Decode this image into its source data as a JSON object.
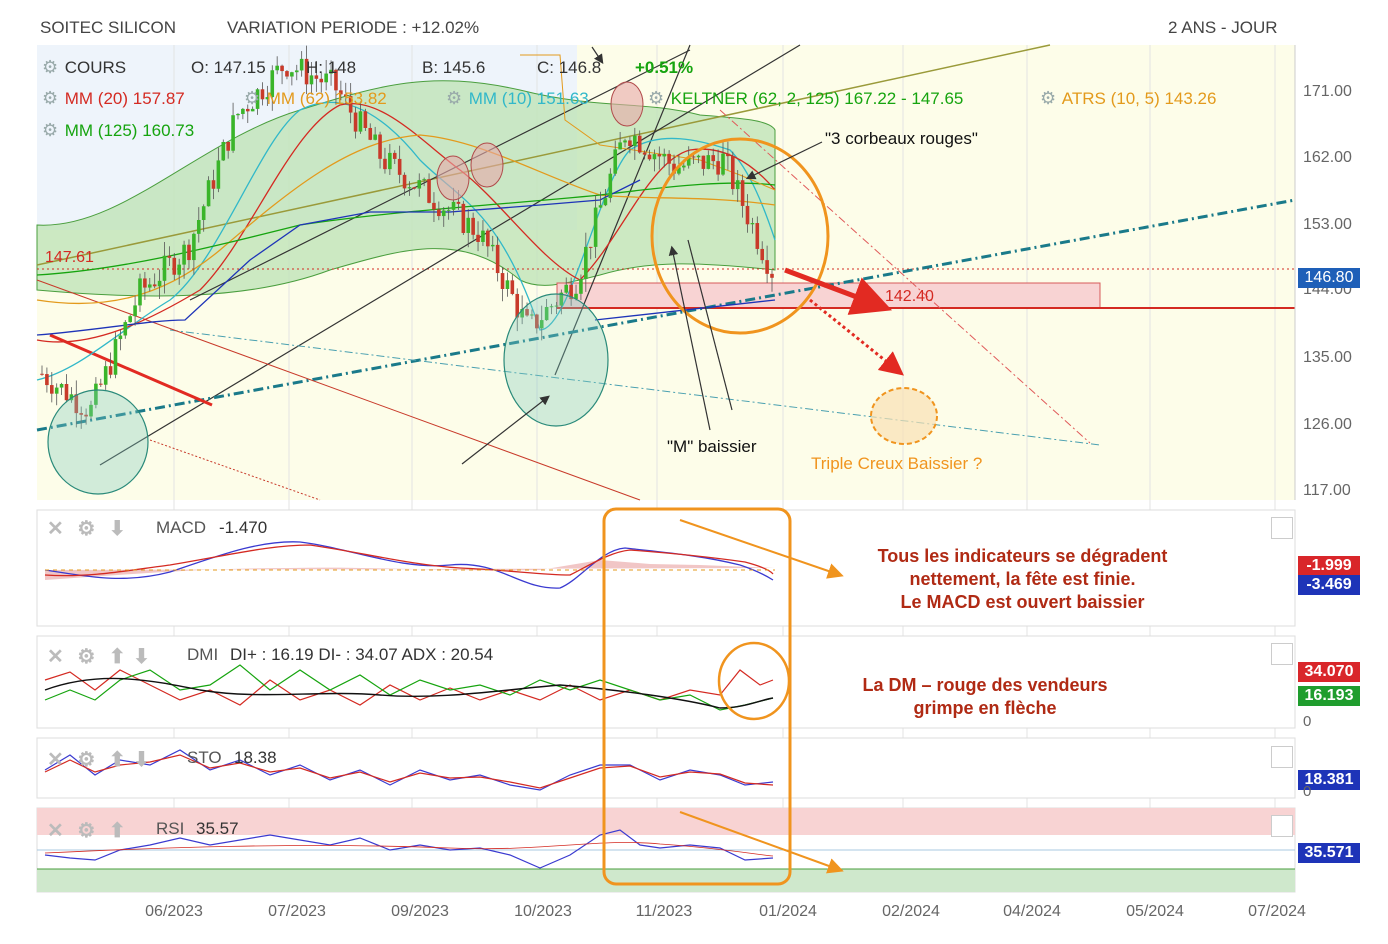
{
  "header": {
    "title": "SOITEC SILICON",
    "variation": "VARIATION PERIODE : +12.02%",
    "period": "2 ANS - JOUR"
  },
  "legend": {
    "cours": "COURS",
    "open": "O: 147.15",
    "high": "H: 148",
    "low": "B: 145.6",
    "close": "C: 146.8",
    "change": "+0.51%",
    "mm20": "MM (20) 157.87",
    "mm62": "MM (62) 153.82",
    "mm10": "MM (10) 151.63",
    "keltner": "KELTNER (62, 2, 125) 167.22 - 147.65",
    "atrs": "ATRS (10, 5) 143.26",
    "mm125": "MM (125) 160.73"
  },
  "price_badge": "146.80",
  "left_level": "147.61",
  "target_level": "142.40",
  "annotations": {
    "corbeaux": "\"3 corbeaux rouges\"",
    "m_baissier": "\"M\" baissier",
    "triple_creux": "Triple Creux Baissier ?",
    "indicators": "Tous les indicateurs se dégradent\nnettement, la fête est finie.\nLe MACD est ouvert baissier",
    "dm": "La DM – rouge des vendeurs\ngrimpe en flèche"
  },
  "panels": {
    "macd": {
      "label": "MACD",
      "value": "-1.470",
      "badge1": "-1.999",
      "badge2": "-3.469"
    },
    "dmi": {
      "label": "DMI",
      "value": "DI+ : 16.19 DI- : 34.07 ADX : 20.54",
      "badge1": "34.070",
      "badge2": "16.193",
      "zero": "0"
    },
    "sto": {
      "label": "STO",
      "value": "18.38",
      "badge1": "18.381",
      "zero": "0"
    },
    "rsi": {
      "label": "RSI",
      "value": "35.57",
      "badge1": "35.571"
    }
  },
  "colors": {
    "ma_red": "#d42a22",
    "ma_orange": "#e39a1c",
    "ma_cyan": "#31b8c9",
    "keltner_green": "#16a40f",
    "candle_up": "#3ab52a",
    "candle_down": "#c83a2a",
    "annotation_orange": "#f0941e",
    "badge_red": "#d9262a",
    "badge_blue": "#1e34b8",
    "badge_green": "#1f9d2e"
  },
  "chart_data": {
    "type": "line",
    "title": "SOITEC SILICON",
    "price_axis": [
      "171.00",
      "162.00",
      "153.00",
      "146.80",
      "144.00",
      "135.00",
      "126.00",
      "117.00"
    ],
    "x_ticks": [
      "06/2023",
      "07/2023",
      "09/2023",
      "10/2023",
      "11/2023",
      "01/2024",
      "02/2024",
      "04/2024",
      "05/2024",
      "07/2024"
    ],
    "ylim": [
      117,
      175
    ],
    "series": [
      {
        "name": "COURS",
        "dates": [
          "2023-05-01",
          "2023-05-15",
          "2023-06-01",
          "2023-06-15",
          "2023-07-01",
          "2023-07-15",
          "2023-08-01",
          "2023-08-15",
          "2023-09-01",
          "2023-09-15",
          "2023-10-01",
          "2023-10-15",
          "2023-11-01",
          "2023-11-15",
          "2023-12-01",
          "2023-12-15"
        ],
        "values": [
          133,
          128,
          144,
          150,
          168,
          175,
          172,
          162,
          157,
          152,
          139,
          146,
          166,
          161,
          162,
          147
        ]
      }
    ],
    "levels": [
      147.61,
      142.4
    ]
  }
}
